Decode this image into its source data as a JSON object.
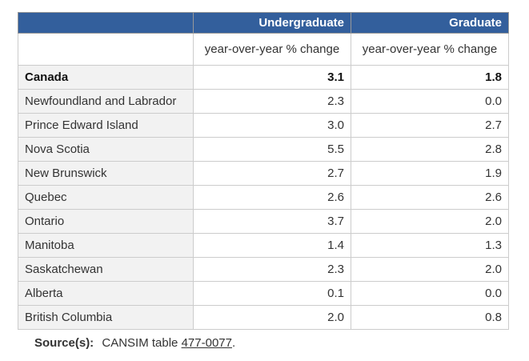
{
  "table": {
    "header": [
      "Undergraduate",
      "Graduate"
    ],
    "subheader": [
      "year-over-year % change",
      "year-over-year % change"
    ],
    "rows": [
      [
        "Canada",
        "3.1",
        "1.8"
      ],
      [
        "Newfoundland and Labrador",
        "2.3",
        "0.0"
      ],
      [
        "Prince Edward Island",
        "3.0",
        "2.7"
      ],
      [
        "Nova Scotia",
        "5.5",
        "2.8"
      ],
      [
        "New Brunswick",
        "2.7",
        "1.9"
      ],
      [
        "Quebec",
        "2.6",
        "2.6"
      ],
      [
        "Ontario",
        "3.7",
        "2.0"
      ],
      [
        "Manitoba",
        "1.4",
        "1.3"
      ],
      [
        "Saskatchewan",
        "2.3",
        "2.0"
      ],
      [
        "Alberta",
        "0.1",
        "0.0"
      ],
      [
        "British Columbia",
        "2.0",
        "0.8"
      ]
    ]
  },
  "source": {
    "label": "Source(s):",
    "text": "CANSIM table",
    "link": "477-0077",
    "suffix": "."
  }
}
